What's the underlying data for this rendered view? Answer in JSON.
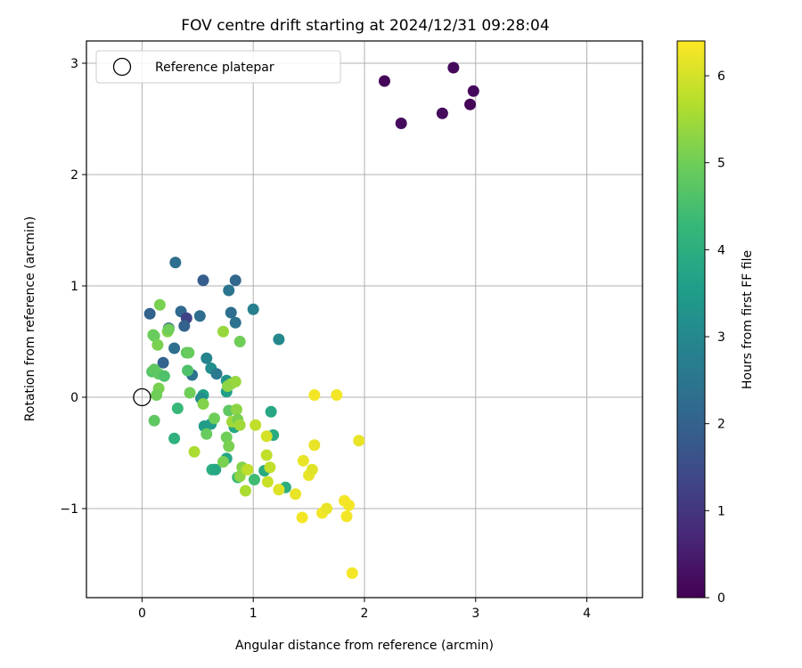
{
  "chart_data": {
    "type": "scatter",
    "title": "FOV centre drift starting at 2024/12/31 09:28:04",
    "xlabel": "Angular distance from reference (arcmin)",
    "ylabel": "Rotation from reference (arcmin)",
    "xlim": [
      -0.5,
      4.5
    ],
    "ylim": [
      -1.8,
      3.2
    ],
    "xticks": [
      0,
      1,
      2,
      3,
      4
    ],
    "yticks": [
      -1,
      0,
      1,
      2,
      3
    ],
    "xtick_labels": [
      "0",
      "1",
      "2",
      "3",
      "4"
    ],
    "ytick_labels": [
      "−1",
      "0",
      "1",
      "2",
      "3"
    ],
    "grid": true,
    "legend": {
      "placement": "top-left",
      "entries": [
        {
          "label": "Reference platepar",
          "marker": "open-circle"
        }
      ]
    },
    "reference_point": {
      "x": 0,
      "y": 0
    },
    "colorbar": {
      "label": "Hours from first FF file",
      "colormap": "viridis",
      "range": [
        0,
        6.4
      ],
      "ticks": [
        0,
        1,
        2,
        3,
        4,
        5,
        6
      ],
      "tick_labels": [
        "0",
        "1",
        "2",
        "3",
        "4",
        "5",
        "6"
      ]
    },
    "points": [
      {
        "x": 2.18,
        "y": 2.84,
        "c": 0.1
      },
      {
        "x": 2.33,
        "y": 2.46,
        "c": 0.2
      },
      {
        "x": 2.7,
        "y": 2.55,
        "c": 0.2
      },
      {
        "x": 2.8,
        "y": 2.96,
        "c": 0.15
      },
      {
        "x": 2.95,
        "y": 2.63,
        "c": 0.1
      },
      {
        "x": 2.98,
        "y": 2.75,
        "c": 0.15
      },
      {
        "x": 0.07,
        "y": 0.75,
        "c": 2.0
      },
      {
        "x": 0.3,
        "y": 1.21,
        "c": 2.3
      },
      {
        "x": 0.55,
        "y": 1.05,
        "c": 1.9
      },
      {
        "x": 0.84,
        "y": 1.05,
        "c": 2.1
      },
      {
        "x": 0.78,
        "y": 0.96,
        "c": 2.5
      },
      {
        "x": 1.0,
        "y": 0.79,
        "c": 2.8
      },
      {
        "x": 0.8,
        "y": 0.76,
        "c": 2.3
      },
      {
        "x": 0.84,
        "y": 0.67,
        "c": 2.4
      },
      {
        "x": 0.35,
        "y": 0.77,
        "c": 2.2
      },
      {
        "x": 0.4,
        "y": 0.71,
        "c": 1.3
      },
      {
        "x": 0.38,
        "y": 0.64,
        "c": 2.0
      },
      {
        "x": 0.52,
        "y": 0.73,
        "c": 2.3
      },
      {
        "x": 0.24,
        "y": 0.62,
        "c": 2.1
      },
      {
        "x": 0.29,
        "y": 0.44,
        "c": 2.3
      },
      {
        "x": 0.19,
        "y": 0.31,
        "c": 2.0
      },
      {
        "x": 1.23,
        "y": 0.52,
        "c": 3.0
      },
      {
        "x": 0.58,
        "y": 0.35,
        "c": 2.9
      },
      {
        "x": 0.62,
        "y": 0.26,
        "c": 3.1
      },
      {
        "x": 0.67,
        "y": 0.21,
        "c": 2.6
      },
      {
        "x": 0.45,
        "y": 0.2,
        "c": 2.4
      },
      {
        "x": 0.76,
        "y": 0.15,
        "c": 3.3
      },
      {
        "x": 0.76,
        "y": 0.05,
        "c": 3.6
      },
      {
        "x": 0.55,
        "y": 0.02,
        "c": 3.6
      },
      {
        "x": 0.53,
        "y": -0.01,
        "c": 3.1
      },
      {
        "x": 0.56,
        "y": -0.26,
        "c": 3.5
      },
      {
        "x": 0.62,
        "y": -0.24,
        "c": 3.5
      },
      {
        "x": 0.83,
        "y": -0.27,
        "c": 3.8
      },
      {
        "x": 1.16,
        "y": -0.13,
        "c": 3.8
      },
      {
        "x": 1.18,
        "y": -0.34,
        "c": 3.9
      },
      {
        "x": 0.76,
        "y": -0.55,
        "c": 3.8
      },
      {
        "x": 0.63,
        "y": -0.65,
        "c": 4.0
      },
      {
        "x": 0.66,
        "y": -0.65,
        "c": 3.8
      },
      {
        "x": 1.1,
        "y": -0.66,
        "c": 3.9
      },
      {
        "x": 1.29,
        "y": -0.81,
        "c": 4.0
      },
      {
        "x": 0.29,
        "y": -0.37,
        "c": 4.1
      },
      {
        "x": 0.32,
        "y": -0.1,
        "c": 4.3
      },
      {
        "x": 0.86,
        "y": -0.72,
        "c": 4.3
      },
      {
        "x": 1.01,
        "y": -0.74,
        "c": 4.4
      },
      {
        "x": 0.09,
        "y": 0.23,
        "c": 4.7
      },
      {
        "x": 0.11,
        "y": 0.25,
        "c": 4.8
      },
      {
        "x": 0.15,
        "y": 0.21,
        "c": 4.8
      },
      {
        "x": 0.2,
        "y": 0.19,
        "c": 4.6
      },
      {
        "x": 0.15,
        "y": 0.08,
        "c": 5.1
      },
      {
        "x": 0.13,
        "y": 0.02,
        "c": 5.0
      },
      {
        "x": 0.11,
        "y": -0.21,
        "c": 4.8
      },
      {
        "x": 0.16,
        "y": 0.83,
        "c": 5.1
      },
      {
        "x": 0.1,
        "y": 0.56,
        "c": 5.0
      },
      {
        "x": 0.11,
        "y": 0.55,
        "c": 4.9
      },
      {
        "x": 0.14,
        "y": 0.47,
        "c": 5.1
      },
      {
        "x": 0.23,
        "y": 0.59,
        "c": 5.2
      },
      {
        "x": 0.24,
        "y": 0.61,
        "c": 5.0
      },
      {
        "x": 0.4,
        "y": 0.4,
        "c": 4.8
      },
      {
        "x": 0.42,
        "y": 0.4,
        "c": 4.9
      },
      {
        "x": 0.41,
        "y": 0.24,
        "c": 4.6
      },
      {
        "x": 0.43,
        "y": 0.04,
        "c": 5.0
      },
      {
        "x": 0.55,
        "y": -0.06,
        "c": 5.2
      },
      {
        "x": 0.58,
        "y": -0.33,
        "c": 4.9
      },
      {
        "x": 0.65,
        "y": -0.19,
        "c": 5.0
      },
      {
        "x": 0.73,
        "y": 0.59,
        "c": 5.4
      },
      {
        "x": 0.88,
        "y": 0.5,
        "c": 5.0
      },
      {
        "x": 0.77,
        "y": 0.1,
        "c": 5.3
      },
      {
        "x": 0.8,
        "y": 0.12,
        "c": 5.3
      },
      {
        "x": 0.84,
        "y": 0.14,
        "c": 5.4
      },
      {
        "x": 0.78,
        "y": -0.12,
        "c": 4.8
      },
      {
        "x": 0.85,
        "y": -0.11,
        "c": 5.3
      },
      {
        "x": 0.81,
        "y": -0.22,
        "c": 5.5
      },
      {
        "x": 0.86,
        "y": -0.2,
        "c": 5.1
      },
      {
        "x": 0.88,
        "y": -0.25,
        "c": 5.5
      },
      {
        "x": 0.76,
        "y": -0.36,
        "c": 5.0
      },
      {
        "x": 0.78,
        "y": -0.44,
        "c": 5.1
      },
      {
        "x": 0.73,
        "y": -0.58,
        "c": 5.1
      },
      {
        "x": 0.47,
        "y": -0.49,
        "c": 5.6
      },
      {
        "x": 0.88,
        "y": -0.71,
        "c": 5.3
      },
      {
        "x": 0.9,
        "y": -0.63,
        "c": 5.2
      },
      {
        "x": 0.93,
        "y": -0.65,
        "c": 5.4
      },
      {
        "x": 0.95,
        "y": -0.65,
        "c": 5.8
      },
      {
        "x": 0.93,
        "y": -0.84,
        "c": 5.6
      },
      {
        "x": 1.02,
        "y": -0.25,
        "c": 5.8
      },
      {
        "x": 1.12,
        "y": -0.35,
        "c": 6.0
      },
      {
        "x": 1.12,
        "y": -0.52,
        "c": 5.8
      },
      {
        "x": 1.15,
        "y": -0.63,
        "c": 5.8
      },
      {
        "x": 1.13,
        "y": -0.76,
        "c": 5.9
      },
      {
        "x": 1.23,
        "y": -0.83,
        "c": 6.1
      },
      {
        "x": 1.38,
        "y": -0.87,
        "c": 6.2
      },
      {
        "x": 1.45,
        "y": -0.57,
        "c": 6.2
      },
      {
        "x": 1.5,
        "y": -0.7,
        "c": 6.2
      },
      {
        "x": 1.53,
        "y": -0.65,
        "c": 6.1
      },
      {
        "x": 1.55,
        "y": -0.43,
        "c": 6.2
      },
      {
        "x": 1.55,
        "y": 0.02,
        "c": 6.3
      },
      {
        "x": 1.75,
        "y": 0.02,
        "c": 6.3
      },
      {
        "x": 1.95,
        "y": -0.39,
        "c": 6.2
      },
      {
        "x": 1.44,
        "y": -1.08,
        "c": 6.3
      },
      {
        "x": 1.62,
        "y": -1.04,
        "c": 6.3
      },
      {
        "x": 1.66,
        "y": -1.0,
        "c": 6.2
      },
      {
        "x": 1.82,
        "y": -0.93,
        "c": 6.3
      },
      {
        "x": 1.86,
        "y": -0.97,
        "c": 6.3
      },
      {
        "x": 1.84,
        "y": -1.07,
        "c": 6.3
      },
      {
        "x": 1.89,
        "y": -1.58,
        "c": 6.3
      }
    ]
  }
}
